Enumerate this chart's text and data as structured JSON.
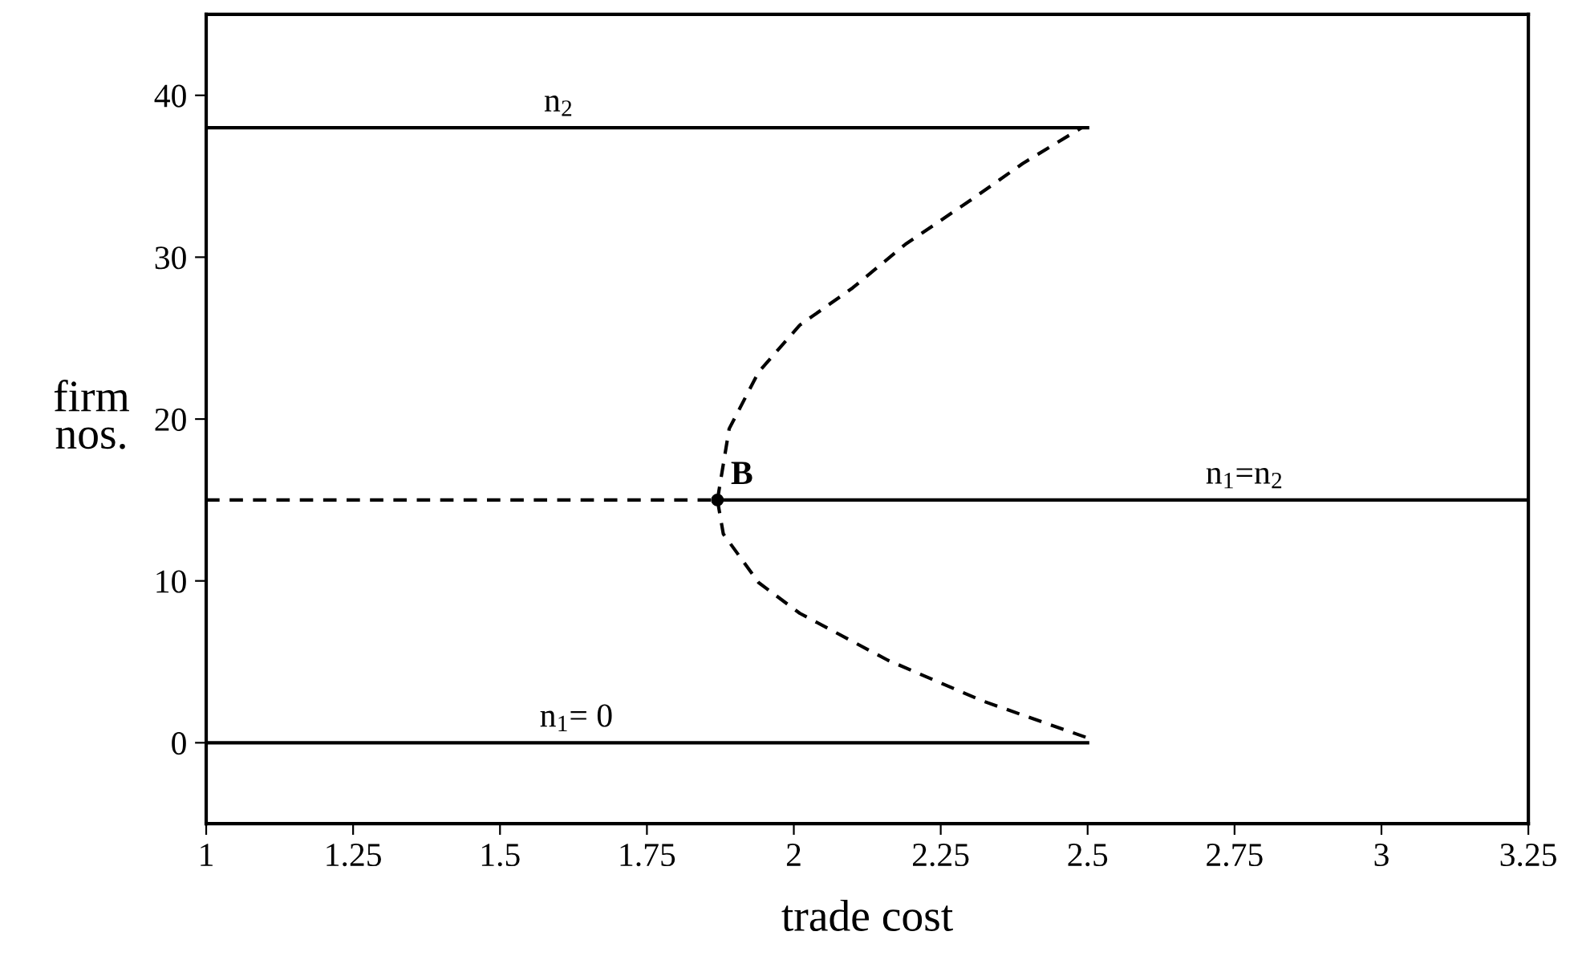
{
  "chart_data": {
    "type": "line",
    "xlabel": "trade cost",
    "ylabel": "firm\nnos.",
    "xlim": [
      1,
      3.25
    ],
    "xticks": [
      1,
      1.25,
      1.5,
      1.75,
      2,
      2.25,
      2.5,
      2.75,
      3,
      3.25
    ],
    "ylim": [
      -5,
      45
    ],
    "yticks": [
      0,
      10,
      20,
      30,
      40
    ],
    "grid": false,
    "legend": false,
    "series": [
      {
        "name": "n$_{2}$",
        "color": "#000000",
        "line_style": "solid",
        "x": [
          1,
          2.5
        ],
        "values": [
          38,
          38
        ]
      },
      {
        "name": "n$_{1}$= 0",
        "color": "#000000",
        "line_style": "solid",
        "x": [
          1,
          2.5
        ],
        "values": [
          0,
          0
        ]
      },
      {
        "name": "n$_{1}$=n$_{2}$",
        "color": "#000000",
        "line_style": "solid",
        "x": [
          1.87,
          3.25
        ],
        "values": [
          15,
          15
        ]
      },
      {
        "color": "#000000",
        "line_style": "dashed",
        "x": [
          1,
          1.87
        ],
        "values": [
          15,
          15
        ]
      },
      {
        "color": "#000000",
        "line_style": "dashed",
        "x": [
          1.87,
          1.89,
          1.94,
          2.01,
          2.1,
          2.19,
          2.3,
          2.39,
          2.49
        ],
        "values": [
          15,
          19.4,
          22.9,
          25.8,
          28.1,
          30.8,
          33.5,
          35.8,
          38
        ]
      },
      {
        "color": "#000000",
        "line_style": "dashed",
        "x": [
          1.87,
          1.88,
          1.94,
          2.01,
          2.16,
          2.32,
          2.5
        ],
        "values": [
          15,
          12.9,
          9.9,
          8,
          5.1,
          2.6,
          0.3
        ]
      },
      {
        "name": "B",
        "type": "scatter",
        "marker": "circle",
        "color": "#000000",
        "x": [
          1.87
        ],
        "values": [
          15
        ]
      }
    ]
  }
}
